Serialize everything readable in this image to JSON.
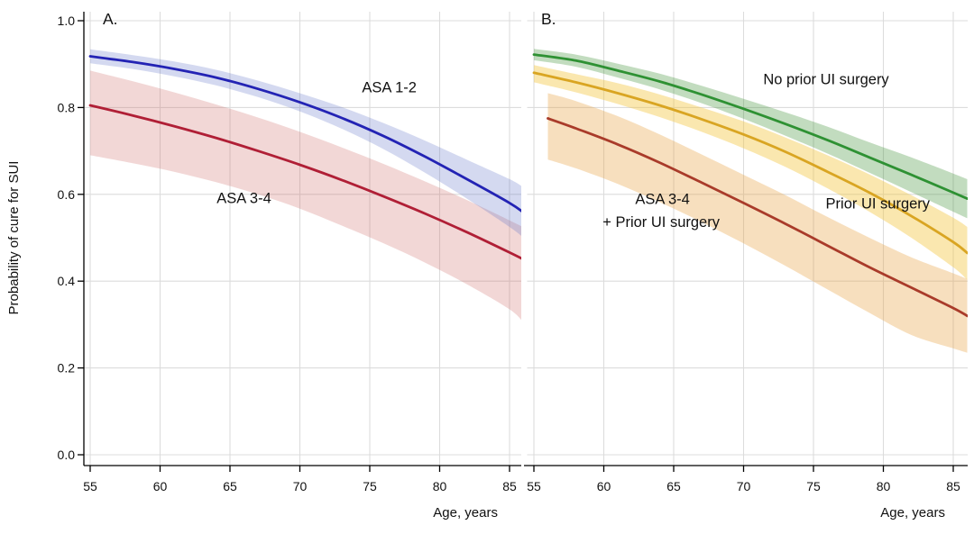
{
  "figure": {
    "ylabel": "Probability of cure for SUI",
    "background_color": "#ffffff",
    "grid_color": "#dcdcdc",
    "axis_color": "#000000",
    "text_color": "#111111"
  },
  "chart_data": [
    {
      "type": "line",
      "panel": "A.",
      "xlabel": "Age, years",
      "ylabel": "Probability of cure for SUI",
      "xlim": [
        54.5,
        86
      ],
      "ylim": [
        0.0,
        1.0
      ],
      "grid": true,
      "legend": "labels drawn inside plot",
      "x_ticks": [
        {
          "value": 55,
          "label": "55"
        },
        {
          "value": 60,
          "label": "60"
        },
        {
          "value": 65,
          "label": "65"
        },
        {
          "value": 70,
          "label": "70"
        },
        {
          "value": 75,
          "label": "75"
        },
        {
          "value": 80,
          "label": "80"
        },
        {
          "value": 85,
          "label": "85"
        }
      ],
      "y_ticks": [
        {
          "value": 0.0,
          "label": "0.0"
        },
        {
          "value": 0.2,
          "label": "0.2"
        },
        {
          "value": 0.4,
          "label": "0.4"
        },
        {
          "value": 0.6,
          "label": "0.6"
        },
        {
          "value": 0.8,
          "label": "0.8"
        },
        {
          "value": 1.0,
          "label": "1.0"
        }
      ],
      "series": [
        {
          "name": "ASA 1-2",
          "line_color": "#2323b4",
          "band_color": "rgba(95,115,200,0.27)",
          "x": [
            55,
            58,
            61,
            64,
            67,
            70,
            73,
            76,
            79,
            82,
            85,
            86
          ],
          "y": [
            0.918,
            0.905,
            0.889,
            0.869,
            0.843,
            0.812,
            0.776,
            0.734,
            0.686,
            0.634,
            0.58,
            0.558
          ],
          "band_lower": [
            0.902,
            0.889,
            0.872,
            0.851,
            0.824,
            0.791,
            0.751,
            0.704,
            0.649,
            0.589,
            0.525,
            0.5
          ],
          "band_upper": [
            0.934,
            0.921,
            0.906,
            0.887,
            0.862,
            0.833,
            0.801,
            0.764,
            0.723,
            0.679,
            0.635,
            0.616
          ]
        },
        {
          "name": "ASA 3-4",
          "line_color": "#b01f36",
          "band_color": "rgba(205,95,90,0.25)",
          "x": [
            55,
            58,
            61,
            64,
            67,
            70,
            73,
            76,
            79,
            82,
            85,
            86
          ],
          "y": [
            0.805,
            0.782,
            0.757,
            0.73,
            0.7,
            0.668,
            0.633,
            0.595,
            0.555,
            0.512,
            0.466,
            0.45
          ],
          "band_lower": [
            0.69,
            0.672,
            0.652,
            0.628,
            0.6,
            0.567,
            0.528,
            0.487,
            0.442,
            0.392,
            0.335,
            0.305
          ],
          "band_upper": [
            0.885,
            0.861,
            0.835,
            0.807,
            0.777,
            0.744,
            0.708,
            0.67,
            0.629,
            0.586,
            0.54,
            0.524
          ]
        }
      ],
      "annotations": [
        {
          "text": "ASA 1-2",
          "age": 76.4,
          "prob": 0.848
        },
        {
          "text": "ASA 3-4",
          "age": 66.0,
          "prob": 0.592
        }
      ]
    },
    {
      "type": "line",
      "panel": "B.",
      "xlabel": "Age, years",
      "ylabel": "",
      "xlim": [
        54.5,
        86
      ],
      "ylim": [
        0.0,
        1.0
      ],
      "grid": true,
      "legend": "labels drawn inside plot",
      "x_ticks": [
        {
          "value": 55,
          "label": "55"
        },
        {
          "value": 60,
          "label": "60"
        },
        {
          "value": 65,
          "label": "65"
        },
        {
          "value": 70,
          "label": "70"
        },
        {
          "value": 75,
          "label": "75"
        },
        {
          "value": 80,
          "label": "80"
        },
        {
          "value": 85,
          "label": "85"
        }
      ],
      "y_ticks": [
        {
          "value": 0.0,
          "label": "0.0"
        },
        {
          "value": 0.2,
          "label": "0.2"
        },
        {
          "value": 0.4,
          "label": "0.4"
        },
        {
          "value": 0.6,
          "label": "0.6"
        },
        {
          "value": 0.8,
          "label": "0.8"
        },
        {
          "value": 1.0,
          "label": "1.0"
        }
      ],
      "series": [
        {
          "name": "No prior UI surgery",
          "line_color": "#2e9133",
          "band_color": "rgba(70,150,60,0.33)",
          "x": [
            55,
            58,
            61,
            64,
            67,
            70,
            73,
            76,
            79,
            82,
            85,
            86
          ],
          "y": [
            0.922,
            0.908,
            0.885,
            0.86,
            0.83,
            0.797,
            0.762,
            0.725,
            0.685,
            0.645,
            0.604,
            0.59
          ],
          "band_lower": [
            0.909,
            0.894,
            0.869,
            0.842,
            0.81,
            0.774,
            0.735,
            0.694,
            0.65,
            0.605,
            0.56,
            0.545
          ],
          "band_upper": [
            0.935,
            0.922,
            0.901,
            0.878,
            0.85,
            0.82,
            0.789,
            0.756,
            0.72,
            0.685,
            0.648,
            0.635
          ]
        },
        {
          "name": "Prior UI surgery",
          "line_color": "#d9a522",
          "band_color": "rgba(242,198,65,0.42)",
          "x": [
            55,
            58,
            61,
            64,
            67,
            70,
            73,
            76,
            79,
            82,
            85,
            86
          ],
          "y": [
            0.88,
            0.858,
            0.833,
            0.805,
            0.773,
            0.738,
            0.698,
            0.652,
            0.604,
            0.55,
            0.49,
            0.465
          ],
          "band_lower": [
            0.858,
            0.835,
            0.808,
            0.778,
            0.744,
            0.706,
            0.663,
            0.614,
            0.56,
            0.5,
            0.432,
            0.403
          ],
          "band_upper": [
            0.898,
            0.877,
            0.856,
            0.83,
            0.8,
            0.768,
            0.731,
            0.69,
            0.646,
            0.598,
            0.546,
            0.525
          ]
        },
        {
          "name": "ASA 3-4 + Prior UI surgery",
          "line_color": "#a93b2a",
          "band_color": "rgba(232,162,70,0.35)",
          "x": [
            56,
            58,
            61,
            64,
            67,
            70,
            73,
            76,
            79,
            82,
            85,
            86
          ],
          "y": [
            0.775,
            0.752,
            0.715,
            0.673,
            0.627,
            0.58,
            0.532,
            0.482,
            0.432,
            0.385,
            0.338,
            0.32
          ],
          "band_lower": [
            0.68,
            0.66,
            0.624,
            0.582,
            0.536,
            0.487,
            0.435,
            0.381,
            0.327,
            0.276,
            0.245,
            0.235
          ],
          "band_upper": [
            0.833,
            0.815,
            0.78,
            0.738,
            0.692,
            0.645,
            0.598,
            0.548,
            0.5,
            0.455,
            0.418,
            0.405
          ]
        }
      ],
      "annotations": [
        {
          "text": "No prior UI surgery",
          "age": 75.9,
          "prob": 0.866
        },
        {
          "text": "ASA 3-4",
          "age": 64.2,
          "prob": 0.59
        },
        {
          "text": "+ Prior UI surgery",
          "age": 64.1,
          "prob": 0.537
        },
        {
          "text": "Prior UI surgery",
          "age": 79.6,
          "prob": 0.58
        }
      ]
    }
  ]
}
